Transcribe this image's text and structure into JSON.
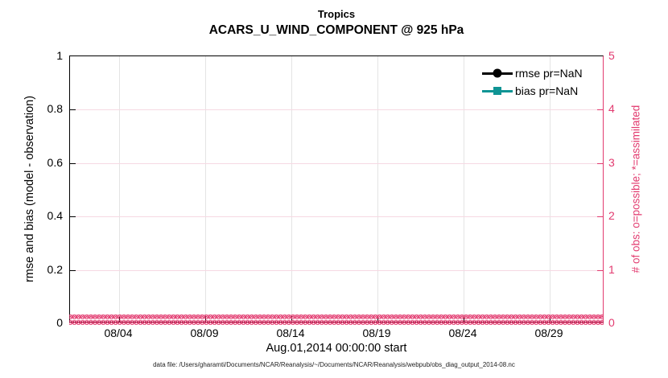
{
  "figure": {
    "title_line1": "Tropics",
    "title_line2": "ACARS_U_WIND_COMPONENT @ 925 hPa",
    "xlabel": "Aug.01,2014 00:00:00 start",
    "ylabel_left": "rmse and bias (model - observation)",
    "ylabel_right": "# of obs: o=possible; *=assimilated",
    "footer": "data file: /Users/gharamti/Documents/NCAR/Reanalysis/~/Documents/NCAR/Reanalysis/webpub/obs_diag_output_2014-08.nc"
  },
  "legend": {
    "entries": [
      {
        "label": "rmse pr=NaN",
        "marker": "circle",
        "color": "#000000"
      },
      {
        "label": "bias pr=NaN",
        "marker": "square",
        "color": "#0f9494"
      }
    ]
  },
  "chart_data": {
    "type": "line",
    "title": "Tropics",
    "subtitle": "ACARS_U_WIND_COMPONENT @ 925 hPa",
    "xlabel": "Aug.01,2014 00:00:00 start",
    "ylabel_left": "rmse and bias (model - observation)",
    "ylabel_right": "# of obs: o=possible; *=assimilated",
    "x_tick_labels": [
      "08/04",
      "08/09",
      "08/14",
      "08/19",
      "08/24",
      "08/29"
    ],
    "y_left_tick_labels": [
      "0",
      "0.2",
      "0.4",
      "0.6",
      "0.8",
      "1"
    ],
    "y_right_tick_labels": [
      "0",
      "1",
      "2",
      "3",
      "4",
      "5"
    ],
    "ylim_left": [
      0,
      1
    ],
    "ylim_right": [
      0,
      5
    ],
    "grid": true,
    "legend_position": "upper-right-inside, no box",
    "series": [
      {
        "name": "rmse pr=NaN",
        "axis": "left",
        "color": "#000000",
        "marker": "circle",
        "values": [],
        "note": "pr=NaN, no curve drawn"
      },
      {
        "name": "bias pr=NaN",
        "axis": "left",
        "color": "#0f9494",
        "marker": "square",
        "values": [],
        "note": "pr=NaN, no curve drawn"
      },
      {
        "name": "# of obs possible (o)",
        "axis": "right",
        "color": "#e23a6f",
        "marker": "o",
        "constant_value": 0,
        "note": "dense o markers at y=0 across entire month"
      },
      {
        "name": "# of obs assimilated (*)",
        "axis": "right",
        "color": "#e23a6f",
        "marker": "*",
        "constant_value": 0,
        "note": "dense * markers at y=0 across entire month"
      }
    ],
    "band": {
      "rows": 2,
      "glyph_circle": "o",
      "glyph_cross": "×",
      "count": 150
    },
    "colors": {
      "accent_pink": "#e23a6f",
      "pink_grid": "#f6d9e3",
      "teal": "#0f9494",
      "grid_vertical": "#e4e4e4"
    }
  }
}
